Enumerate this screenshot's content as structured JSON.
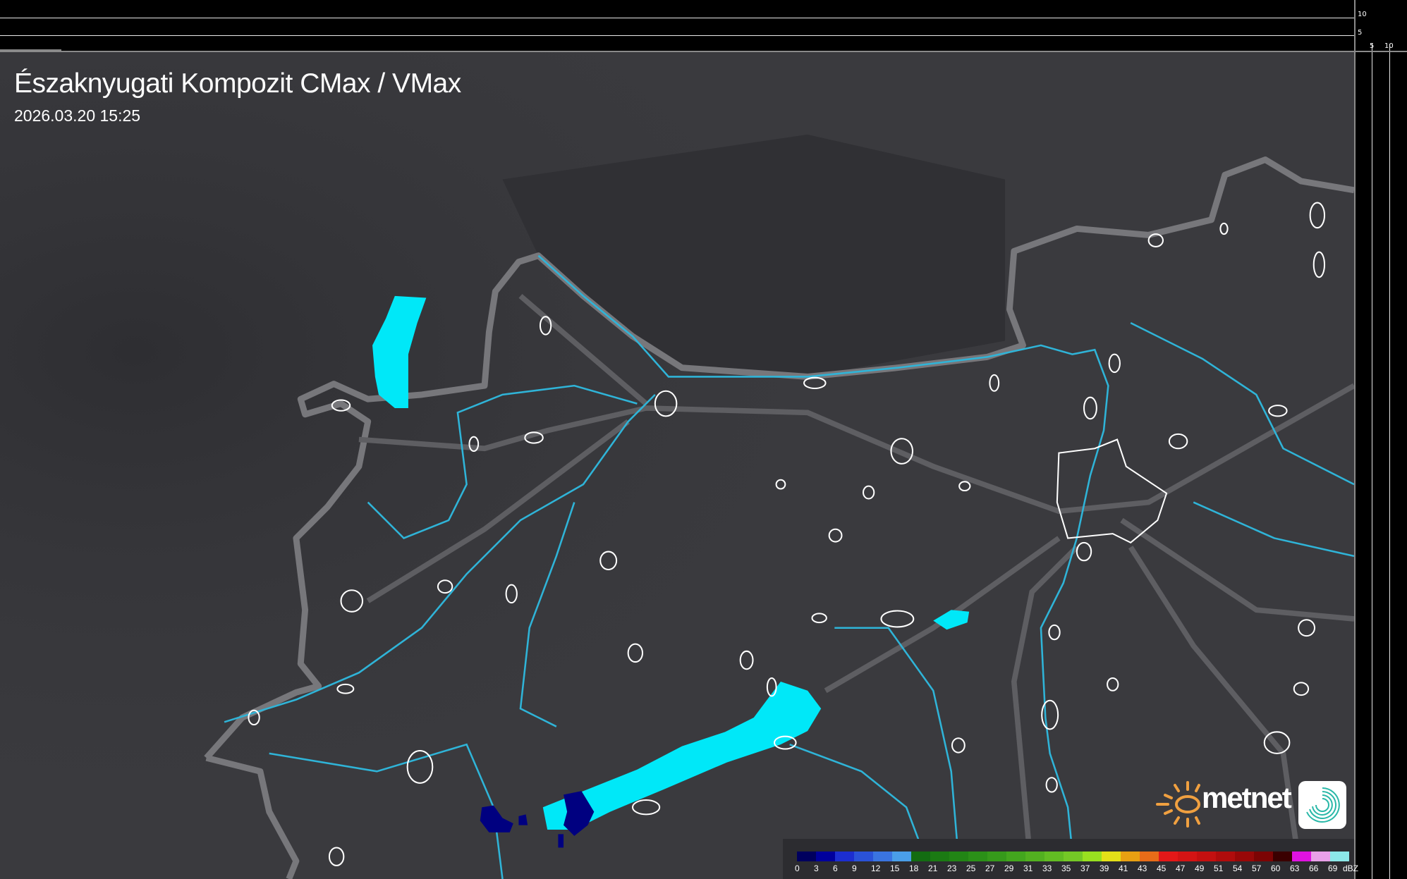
{
  "header": {
    "title": "Északnyugati Kompozit CMax / VMax",
    "timestamp": "2026.03.20 15:25"
  },
  "axes": {
    "left_ticks": [
      "10",
      "5"
    ],
    "bottom_ticks": [
      "5",
      "10"
    ]
  },
  "legend": {
    "unit": "dBZ",
    "labels": [
      "0",
      "3",
      "6",
      "9",
      "12",
      "15",
      "18",
      "21",
      "23",
      "25",
      "27",
      "29",
      "31",
      "33",
      "35",
      "37",
      "39",
      "41",
      "43",
      "45",
      "47",
      "49",
      "51",
      "54",
      "57",
      "60",
      "63",
      "66",
      "69"
    ],
    "colors": [
      "#00005e",
      "#00009c",
      "#1c2ed0",
      "#2a52d8",
      "#3a74e0",
      "#4a9ee8",
      "#136c12",
      "#1b7a13",
      "#228515",
      "#2b9018",
      "#369a1b",
      "#43a61e",
      "#52b020",
      "#62bc23",
      "#74c826",
      "#98e020",
      "#e4e018",
      "#e8a012",
      "#e86c18",
      "#e41818",
      "#d41414",
      "#c41010",
      "#b00c0c",
      "#980808",
      "#7c0404",
      "#3a0000",
      "#e012e0",
      "#e8a0e8",
      "#8ce8e8"
    ]
  },
  "logo": {
    "brand": "metnet",
    "sun_color": "#f0a040",
    "badge_color": "#2ab8a8"
  },
  "map_colors": {
    "terrain": "#3a3a3e",
    "border": "#7a7a7e",
    "river": "#2fb4d8",
    "lake": "#00e8f8",
    "town_outline": "#ffffff",
    "precip_dark": "#000080"
  }
}
